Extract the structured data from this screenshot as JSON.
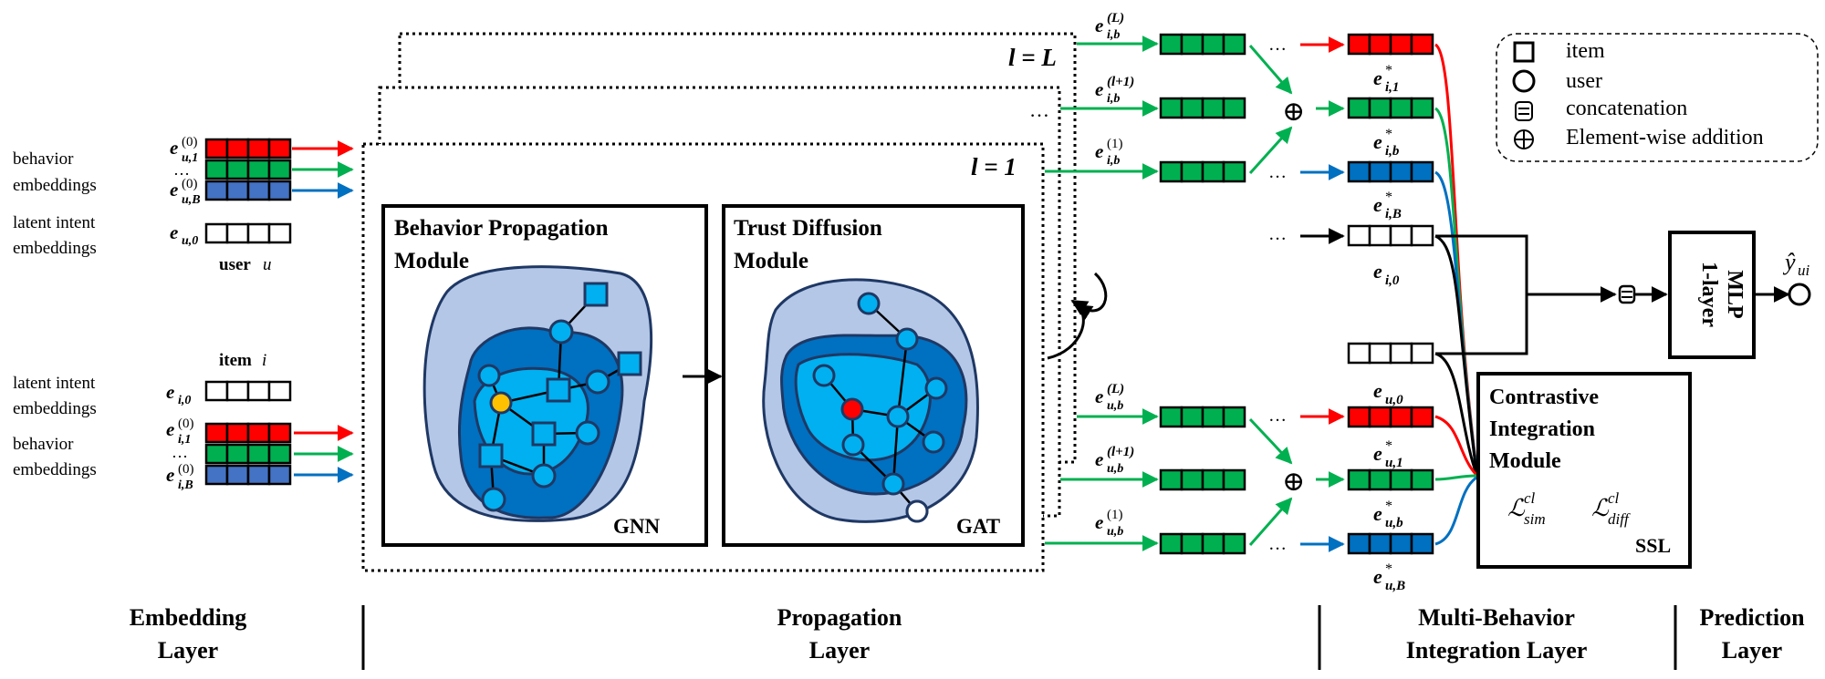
{
  "colors": {
    "red": "#ff0000",
    "green": "#00b050",
    "blue": "#4472c4",
    "blue_dark": "#0070c0",
    "blob_light": "#b4c7e7",
    "blob_mid": "#0070c0",
    "blob_inner": "#00b0f0",
    "node_user": "#ffc000",
    "node_center": "#ff0000",
    "navy": "#1f3864"
  },
  "embedding": {
    "user_side": {
      "behavior_label": [
        "behavior",
        "embeddings"
      ],
      "latent_label": [
        "latent intent",
        "embeddings"
      ],
      "row_labels": [
        "e",
        "…",
        "e"
      ],
      "e_u1": {
        "base": "e",
        "sub": "u,1",
        "sup": "(0)"
      },
      "e_uB": {
        "base": "e",
        "sub": "u,B",
        "sup": "(0)"
      },
      "e_u0": {
        "base": "e",
        "sub": "u,0"
      },
      "dots": "…",
      "caption_word": "user",
      "caption_var": "u"
    },
    "item_side": {
      "caption_word": "item",
      "caption_var": "i",
      "latent_label": [
        "latent intent",
        "embeddings"
      ],
      "behavior_label": [
        "behavior",
        "embeddings"
      ],
      "e_i0": {
        "base": "e",
        "sub": "i,0"
      },
      "e_i1": {
        "base": "e",
        "sub": "i,1",
        "sup": "(0)"
      },
      "e_iB": {
        "base": "e",
        "sub": "i,B",
        "sup": "(0)"
      },
      "dots": "…"
    }
  },
  "propagation": {
    "layer_L": "l = L",
    "layer_1": "l = 1",
    "dots": "…",
    "bpm_title": [
      "Behavior Propagation",
      "Module"
    ],
    "bpm_tag": "GNN",
    "tdm_title": [
      "Trust Diffusion",
      "Module"
    ],
    "tdm_tag": "GAT"
  },
  "outputs_item": [
    {
      "base": "e",
      "sub": "i,b",
      "sup": "(L)"
    },
    {
      "base": "e",
      "sub": "i,b",
      "sup": "(l+1)"
    },
    {
      "base": "e",
      "sub": "i,b",
      "sup": "(1)"
    }
  ],
  "outputs_user": [
    {
      "base": "e",
      "sub": "u,b",
      "sup": "(L)"
    },
    {
      "base": "e",
      "sub": "u,b",
      "sup": "(l+1)"
    },
    {
      "base": "e",
      "sub": "u,b",
      "sup": "(1)"
    }
  ],
  "integration": {
    "dots": "…",
    "oplus": "⊕",
    "item_labels": [
      {
        "base": "e",
        "sub": "i,1",
        "sup": "*"
      },
      {
        "base": "e",
        "sub": "i,b",
        "sup": "*"
      },
      {
        "base": "e",
        "sub": "i,B",
        "sup": "*"
      },
      {
        "base": "e",
        "sub": "i,0"
      }
    ],
    "user_labels": [
      {
        "base": "e",
        "sub": "u,0"
      },
      {
        "base": "e",
        "sub": "u,1",
        "sup": "*"
      },
      {
        "base": "e",
        "sub": "u,b",
        "sup": "*"
      },
      {
        "base": "e",
        "sub": "u,B",
        "sup": "*"
      }
    ],
    "cim_title": [
      "Contrastive",
      "Integration",
      "Module"
    ],
    "loss_sim": {
      "base": "ℒ",
      "sub": "sim",
      "sup": "cl"
    },
    "loss_diff": {
      "base": "ℒ",
      "sub": "diff",
      "sup": "cl"
    },
    "ssl": "SSL"
  },
  "prediction": {
    "mlp": [
      "1-layer",
      "MLP"
    ],
    "output": {
      "base": "ŷ",
      "sub": "ui"
    }
  },
  "legend": [
    {
      "icon": "square-icon",
      "label": "item"
    },
    {
      "icon": "circle-icon",
      "label": "user"
    },
    {
      "icon": "concat-icon",
      "label": "concatenation"
    },
    {
      "icon": "oplus-icon",
      "label": "Element-wise addition"
    }
  ],
  "bottom_labels": [
    [
      "Embedding",
      "Layer"
    ],
    [
      "Propagation",
      "Layer"
    ],
    [
      "Multi-Behavior",
      "Integration Layer"
    ],
    [
      "Prediction",
      "Layer"
    ]
  ]
}
